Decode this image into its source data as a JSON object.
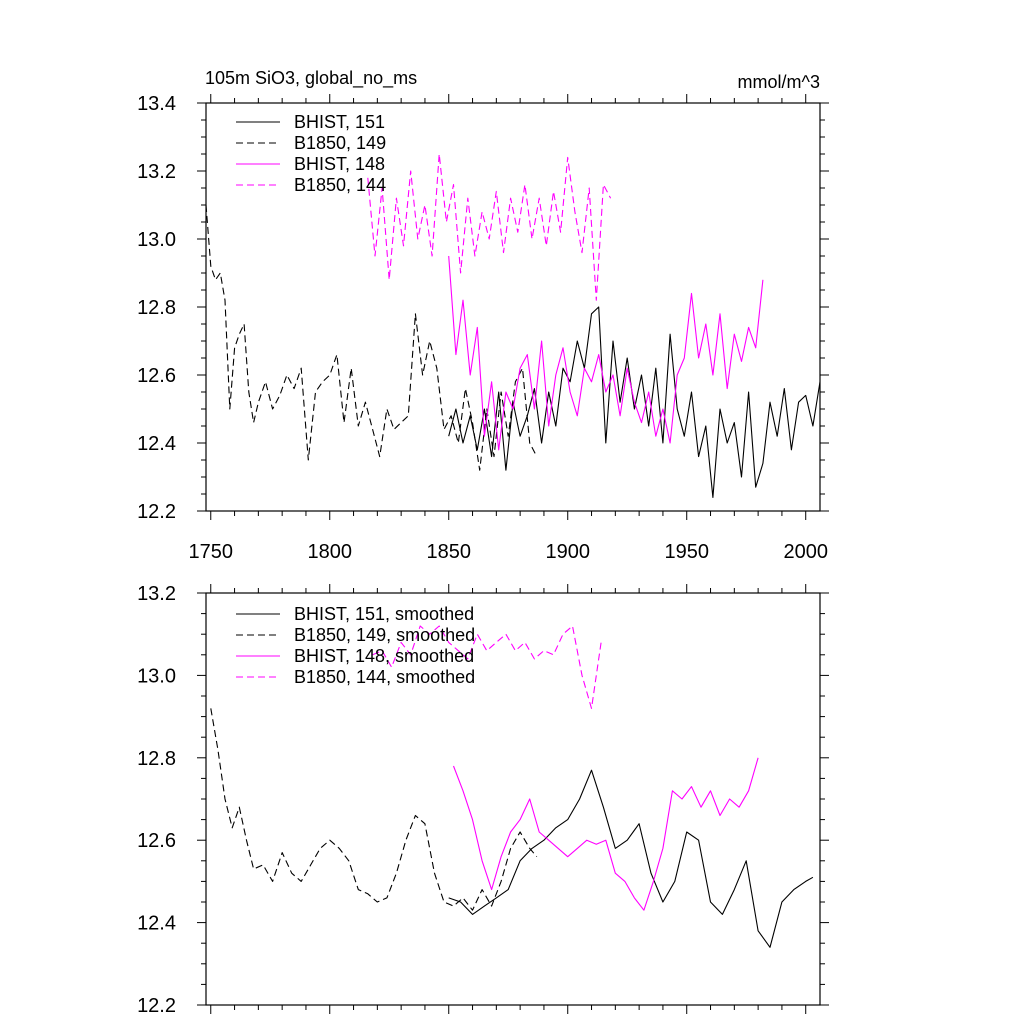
{
  "chart_data": [
    {
      "type": "line",
      "title": "105m SiO3, global_no_ms",
      "units": "mmol/m^3",
      "xlim": [
        1748,
        2006
      ],
      "ylim": [
        12.2,
        13.4
      ],
      "x_ticks": [
        1750,
        1800,
        1850,
        1900,
        1950,
        2000
      ],
      "y_ticks": [
        12.2,
        12.4,
        12.6,
        12.8,
        13.0,
        13.2,
        13.4
      ],
      "legend_placement": "top-left",
      "series": [
        {
          "name": "BHIST, 151",
          "color": "#000000",
          "dash": "solid",
          "x": [
            1850,
            1853,
            1856,
            1859,
            1862,
            1865,
            1868,
            1871,
            1874,
            1877,
            1880,
            1883,
            1886,
            1889,
            1892,
            1895,
            1898,
            1901,
            1904,
            1907,
            1910,
            1913,
            1916,
            1919,
            1922,
            1925,
            1928,
            1931,
            1934,
            1937,
            1940,
            1943,
            1946,
            1949,
            1952,
            1955,
            1958,
            1961,
            1964,
            1967,
            1970,
            1973,
            1976,
            1979,
            1982,
            1985,
            1988,
            1991,
            1994,
            1997,
            2000,
            2003,
            2006
          ],
          "y": [
            12.42,
            12.5,
            12.4,
            12.48,
            12.38,
            12.5,
            12.36,
            12.55,
            12.32,
            12.52,
            12.42,
            12.48,
            12.56,
            12.4,
            12.55,
            12.45,
            12.62,
            12.58,
            12.7,
            12.62,
            12.78,
            12.8,
            12.4,
            12.7,
            12.52,
            12.65,
            12.5,
            12.6,
            12.45,
            12.62,
            12.4,
            12.72,
            12.5,
            12.42,
            12.55,
            12.36,
            12.45,
            12.24,
            12.5,
            12.4,
            12.46,
            12.3,
            12.55,
            12.27,
            12.34,
            12.52,
            12.42,
            12.56,
            12.38,
            12.52,
            12.54,
            12.45,
            12.58
          ]
        },
        {
          "name": "B1850, 149",
          "color": "#000000",
          "dash": "dashed",
          "x": [
            1748,
            1750,
            1752,
            1754,
            1756,
            1758,
            1760,
            1762,
            1764,
            1766,
            1768,
            1770,
            1773,
            1776,
            1779,
            1782,
            1785,
            1788,
            1791,
            1794,
            1797,
            1800,
            1803,
            1806,
            1809,
            1812,
            1815,
            1818,
            1821,
            1824,
            1827,
            1830,
            1833,
            1836,
            1839,
            1842,
            1845,
            1848,
            1851,
            1854,
            1857,
            1860,
            1863,
            1866,
            1869,
            1872,
            1875,
            1878,
            1881,
            1884,
            1887
          ],
          "y": [
            13.1,
            12.92,
            12.88,
            12.9,
            12.82,
            12.5,
            12.68,
            12.72,
            12.75,
            12.55,
            12.46,
            12.52,
            12.58,
            12.5,
            12.54,
            12.6,
            12.56,
            12.62,
            12.35,
            12.55,
            12.58,
            12.6,
            12.66,
            12.46,
            12.62,
            12.45,
            12.52,
            12.44,
            12.36,
            12.5,
            12.44,
            12.46,
            12.48,
            12.78,
            12.6,
            12.7,
            12.62,
            12.44,
            12.48,
            12.4,
            12.56,
            12.46,
            12.32,
            12.5,
            12.36,
            12.55,
            12.42,
            12.58,
            12.62,
            12.4,
            12.36
          ]
        },
        {
          "name": "BHIST, 148",
          "color": "#ff00ff",
          "dash": "solid",
          "x": [
            1850,
            1853,
            1856,
            1859,
            1862,
            1865,
            1868,
            1871,
            1874,
            1877,
            1880,
            1883,
            1886,
            1889,
            1892,
            1895,
            1898,
            1901,
            1904,
            1907,
            1910,
            1913,
            1916,
            1919,
            1922,
            1925,
            1928,
            1931,
            1934,
            1937,
            1940,
            1943,
            1946,
            1949,
            1952,
            1955,
            1958,
            1961,
            1964,
            1967,
            1970,
            1973,
            1976,
            1979,
            1982
          ],
          "y": [
            12.95,
            12.66,
            12.82,
            12.6,
            12.74,
            12.42,
            12.58,
            12.38,
            12.55,
            12.5,
            12.62,
            12.66,
            12.5,
            12.7,
            12.45,
            12.6,
            12.68,
            12.55,
            12.48,
            12.62,
            12.58,
            12.66,
            12.55,
            12.6,
            12.48,
            12.62,
            12.52,
            12.46,
            12.55,
            12.42,
            12.5,
            12.4,
            12.6,
            12.65,
            12.84,
            12.65,
            12.75,
            12.6,
            12.78,
            12.56,
            12.72,
            12.64,
            12.74,
            12.68,
            12.88
          ]
        },
        {
          "name": "B1850, 144",
          "color": "#ff00ff",
          "dash": "dashed",
          "x": [
            1816,
            1819,
            1822,
            1825,
            1828,
            1831,
            1834,
            1837,
            1840,
            1843,
            1846,
            1849,
            1852,
            1855,
            1858,
            1861,
            1864,
            1867,
            1870,
            1873,
            1876,
            1879,
            1882,
            1885,
            1888,
            1891,
            1894,
            1897,
            1900,
            1903,
            1906,
            1909,
            1912,
            1915,
            1918
          ],
          "y": [
            13.18,
            12.95,
            13.15,
            12.88,
            13.12,
            12.98,
            13.2,
            13.0,
            13.1,
            12.95,
            13.25,
            13.05,
            13.16,
            12.9,
            13.12,
            12.95,
            13.08,
            13.0,
            13.14,
            12.96,
            13.12,
            13.02,
            13.16,
            13.0,
            13.12,
            12.98,
            13.14,
            13.02,
            13.24,
            13.08,
            12.96,
            13.15,
            12.82,
            13.16,
            13.12
          ]
        }
      ]
    },
    {
      "type": "line",
      "xlim": [
        1748,
        2006
      ],
      "ylim": [
        12.2,
        13.2
      ],
      "y_ticks": [
        12.2,
        12.4,
        12.6,
        12.8,
        13.0,
        13.2
      ],
      "legend_placement": "top-left",
      "series": [
        {
          "name": "BHIST, 151, smoothed",
          "color": "#000000",
          "dash": "solid",
          "x": [
            1850,
            1855,
            1860,
            1865,
            1870,
            1875,
            1880,
            1885,
            1890,
            1895,
            1900,
            1905,
            1910,
            1915,
            1920,
            1925,
            1930,
            1935,
            1940,
            1945,
            1950,
            1955,
            1960,
            1965,
            1970,
            1975,
            1980,
            1985,
            1990,
            1995,
            2000,
            2003
          ],
          "y": [
            12.46,
            12.45,
            12.42,
            12.44,
            12.46,
            12.48,
            12.55,
            12.58,
            12.6,
            12.63,
            12.65,
            12.7,
            12.77,
            12.68,
            12.58,
            12.6,
            12.64,
            12.52,
            12.45,
            12.5,
            12.62,
            12.6,
            12.45,
            12.42,
            12.48,
            12.55,
            12.38,
            12.34,
            12.45,
            12.48,
            12.5,
            12.51
          ]
        },
        {
          "name": "B1850, 149, smoothed",
          "color": "#000000",
          "dash": "dashed",
          "x": [
            1750,
            1753,
            1756,
            1759,
            1762,
            1765,
            1768,
            1772,
            1776,
            1780,
            1784,
            1788,
            1792,
            1796,
            1800,
            1804,
            1808,
            1812,
            1816,
            1820,
            1824,
            1828,
            1832,
            1836,
            1840,
            1844,
            1848,
            1852,
            1856,
            1860,
            1864,
            1868,
            1872,
            1876,
            1880,
            1884,
            1887
          ],
          "y": [
            12.92,
            12.82,
            12.7,
            12.63,
            12.68,
            12.6,
            12.53,
            12.54,
            12.5,
            12.57,
            12.52,
            12.5,
            12.54,
            12.58,
            12.6,
            12.58,
            12.55,
            12.48,
            12.47,
            12.45,
            12.46,
            12.52,
            12.6,
            12.66,
            12.64,
            12.52,
            12.45,
            12.44,
            12.46,
            12.43,
            12.48,
            12.44,
            12.5,
            12.58,
            12.62,
            12.58,
            12.56
          ]
        },
        {
          "name": "BHIST, 148, smoothed",
          "color": "#ff00ff",
          "dash": "solid",
          "x": [
            1852,
            1856,
            1860,
            1864,
            1868,
            1872,
            1876,
            1880,
            1884,
            1888,
            1892,
            1896,
            1900,
            1904,
            1908,
            1912,
            1916,
            1920,
            1924,
            1928,
            1932,
            1936,
            1940,
            1944,
            1948,
            1952,
            1956,
            1960,
            1964,
            1968,
            1972,
            1976,
            1980
          ],
          "y": [
            12.78,
            12.72,
            12.65,
            12.55,
            12.48,
            12.56,
            12.62,
            12.65,
            12.7,
            12.62,
            12.6,
            12.58,
            12.56,
            12.58,
            12.6,
            12.59,
            12.6,
            12.52,
            12.5,
            12.46,
            12.43,
            12.5,
            12.58,
            12.72,
            12.7,
            12.73,
            12.68,
            12.72,
            12.66,
            12.7,
            12.68,
            12.72,
            12.8
          ]
        },
        {
          "name": "B1850, 144, smoothed",
          "color": "#ff00ff",
          "dash": "dashed",
          "x": [
            1818,
            1822,
            1826,
            1830,
            1834,
            1838,
            1842,
            1846,
            1850,
            1854,
            1858,
            1862,
            1866,
            1870,
            1874,
            1878,
            1882,
            1886,
            1890,
            1894,
            1898,
            1902,
            1906,
            1910,
            1914
          ],
          "y": [
            13.05,
            13.06,
            13.02,
            13.08,
            13.05,
            13.12,
            13.1,
            13.12,
            13.08,
            13.06,
            13.04,
            13.1,
            13.06,
            13.08,
            13.1,
            13.06,
            13.08,
            13.04,
            13.06,
            13.05,
            13.1,
            13.12,
            13.0,
            12.92,
            13.08
          ]
        }
      ]
    }
  ]
}
